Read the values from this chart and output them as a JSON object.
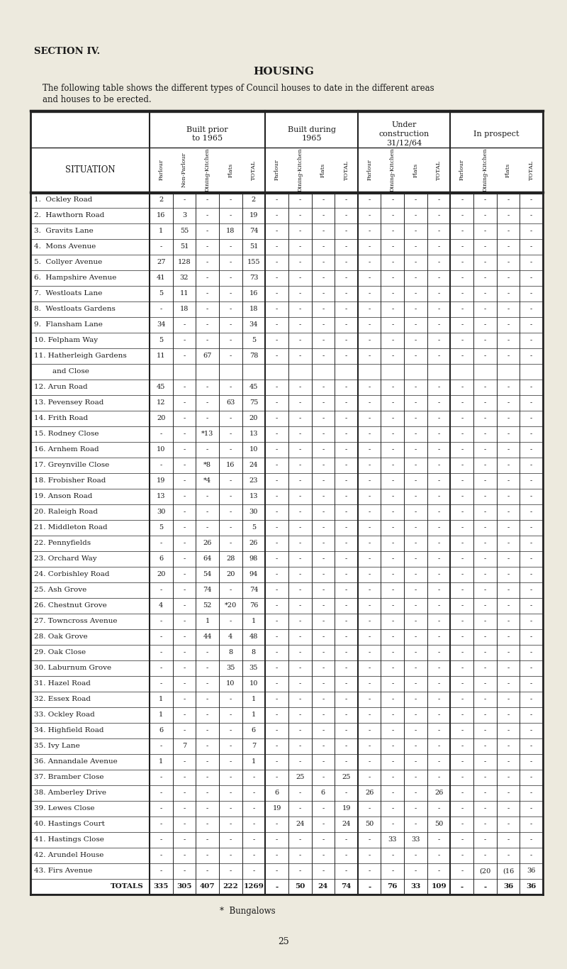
{
  "section_title": "SECTION IV.",
  "main_title": "HOUSING",
  "subtitle_line1": "The following table shows the different types of Council houses to date in the different areas",
  "subtitle_line2": "and houses to be erected.",
  "footer_note": "*  Bungalows",
  "page_num": "25",
  "bg_color": "#edeade",
  "text_color": "#1a1a1a",
  "line_color": "#222222",
  "group_labels": [
    "Built prior\nto 1965",
    "Built during\n1965",
    "Under\nconstruction\n31/12/64",
    "In prospect"
  ],
  "sub_headers_g0": [
    "Parlour",
    "Non-Parlour",
    "Dining-Kitchen",
    "Flats",
    "TOTAL"
  ],
  "sub_headers_g1": [
    "Parlour",
    "Dining-Kitchen",
    "Flats",
    "TOTAL"
  ],
  "sub_headers_g2": [
    "Parlour",
    "Dining-Kitchen",
    "Flats",
    "TOTAL"
  ],
  "sub_headers_g3": [
    "Parlour",
    "Dining-Kitchen",
    "Flats",
    "TOTAL"
  ],
  "situations": [
    "1.  Ockley Road",
    "2.  Hawthorn Road",
    "3.  Gravits Lane",
    "4.  Mons Avenue",
    "5.  Collyer Avenue",
    "6.  Hampshire Avenue",
    "7.  Westloats Lane",
    "8.  Westloats Gardens",
    "9.  Flansham Lane",
    "10. Felpham Way",
    "11. Hatherleigh Gardens",
    "        and Close",
    "12. Arun Road",
    "13. Pevensey Road",
    "14. Frith Road",
    "15. Rodney Close",
    "16. Arnhem Road",
    "17. Greynville Close",
    "18. Frobisher Road",
    "19. Anson Road",
    "20. Raleigh Road",
    "21. Middleton Road",
    "22. Pennyfields",
    "23. Orchard Way",
    "24. Corbishley Road",
    "25. Ash Grove",
    "26. Chestnut Grove",
    "27. Towncross Avenue",
    "28. Oak Grove",
    "29. Oak Close",
    "30. Laburnum Grove",
    "31. Hazel Road",
    "32. Essex Road",
    "33. Ockley Road",
    "34. Highfield Road",
    "35. Ivy Lane",
    "36. Annandale Avenue",
    "37. Bramber Close",
    "38. Amberley Drive",
    "39. Lewes Close",
    "40. Hastings Court",
    "41. Hastings Close",
    "42. Arundel House",
    "43. Firs Avenue",
    "TOTALS"
  ],
  "sit_is_continuation": [
    false,
    false,
    false,
    false,
    false,
    false,
    false,
    false,
    false,
    false,
    false,
    true,
    false,
    false,
    false,
    false,
    false,
    false,
    false,
    false,
    false,
    false,
    false,
    false,
    false,
    false,
    false,
    false,
    false,
    false,
    false,
    false,
    false,
    false,
    false,
    false,
    false,
    false,
    false,
    false,
    false,
    false,
    false,
    false,
    false
  ],
  "rows": [
    [
      "2",
      "-",
      "-",
      "-",
      "2",
      "-",
      "-",
      "-",
      "-",
      "-",
      "-",
      "-",
      "-",
      "-",
      "-",
      "-",
      "-"
    ],
    [
      "16",
      "3",
      "-",
      "-",
      "19",
      "-",
      "-",
      "-",
      "-",
      "-",
      "-",
      "-",
      "-",
      "-",
      "-",
      "-",
      "-"
    ],
    [
      "1",
      "55",
      "-",
      "18",
      "74",
      "-",
      "-",
      "-",
      "-",
      "-",
      "-",
      "-",
      "-",
      "-",
      "-",
      "-",
      "-"
    ],
    [
      "-",
      "51",
      "-",
      "-",
      "51",
      "-",
      "-",
      "-",
      "-",
      "-",
      "-",
      "-",
      "-",
      "-",
      "-",
      "-",
      "-"
    ],
    [
      "27",
      "128",
      "-",
      "-",
      "155",
      "-",
      "-",
      "-",
      "-",
      "-",
      "-",
      "-",
      "-",
      "-",
      "-",
      "-",
      "-"
    ],
    [
      "41",
      "32",
      "-",
      "-",
      "73",
      "-",
      "-",
      "-",
      "-",
      "-",
      "-",
      "-",
      "-",
      "-",
      "-",
      "-",
      "-"
    ],
    [
      "5",
      "11",
      "-",
      "-",
      "16",
      "-",
      "-",
      "-",
      "-",
      "-",
      "-",
      "-",
      "-",
      "-",
      "-",
      "-",
      "-"
    ],
    [
      "-",
      "18",
      "-",
      "-",
      "18",
      "-",
      "-",
      "-",
      "-",
      "-",
      "-",
      "-",
      "-",
      "-",
      "-",
      "-",
      "-"
    ],
    [
      "34",
      "-",
      "-",
      "-",
      "34",
      "-",
      "-",
      "-",
      "-",
      "-",
      "-",
      "-",
      "-",
      "-",
      "-",
      "-",
      "-"
    ],
    [
      "5",
      "-",
      "-",
      "-",
      "5",
      "-",
      "-",
      "-",
      "-",
      "-",
      "-",
      "-",
      "-",
      "-",
      "-",
      "-",
      "-"
    ],
    [
      "11",
      "-",
      "67",
      "-",
      "78",
      "-",
      "-",
      "-",
      "-",
      "-",
      "-",
      "-",
      "-",
      "-",
      "-",
      "-",
      "-"
    ],
    [
      "",
      "",
      "",
      "",
      "",
      "",
      "",
      "",
      "",
      "",
      "",
      "",
      "",
      "",
      "",
      "",
      ""
    ],
    [
      "45",
      "-",
      "-",
      "-",
      "45",
      "-",
      "-",
      "-",
      "-",
      "-",
      "-",
      "-",
      "-",
      "-",
      "-",
      "-",
      "-"
    ],
    [
      "12",
      "-",
      "-",
      "63",
      "75",
      "-",
      "-",
      "-",
      "-",
      "-",
      "-",
      "-",
      "-",
      "-",
      "-",
      "-",
      "-"
    ],
    [
      "20",
      "-",
      "-",
      "-",
      "20",
      "-",
      "-",
      "-",
      "-",
      "-",
      "-",
      "-",
      "-",
      "-",
      "-",
      "-",
      "-"
    ],
    [
      "-",
      "-",
      "*13",
      "-",
      "13",
      "-",
      "-",
      "-",
      "-",
      "-",
      "-",
      "-",
      "-",
      "-",
      "-",
      "-",
      "-"
    ],
    [
      "10",
      "-",
      "-",
      "-",
      "10",
      "-",
      "-",
      "-",
      "-",
      "-",
      "-",
      "-",
      "-",
      "-",
      "-",
      "-",
      "-"
    ],
    [
      "-",
      "-",
      "*8",
      "16",
      "24",
      "-",
      "-",
      "-",
      "-",
      "-",
      "-",
      "-",
      "-",
      "-",
      "-",
      "-",
      "-"
    ],
    [
      "19",
      "-",
      "*4",
      "-",
      "23",
      "-",
      "-",
      "-",
      "-",
      "-",
      "-",
      "-",
      "-",
      "-",
      "-",
      "-",
      "-"
    ],
    [
      "13",
      "-",
      "-",
      "-",
      "13",
      "-",
      "-",
      "-",
      "-",
      "-",
      "-",
      "-",
      "-",
      "-",
      "-",
      "-",
      "-"
    ],
    [
      "30",
      "-",
      "-",
      "-",
      "30",
      "-",
      "-",
      "-",
      "-",
      "-",
      "-",
      "-",
      "-",
      "-",
      "-",
      "-",
      "-"
    ],
    [
      "5",
      "-",
      "-",
      "-",
      "5",
      "-",
      "-",
      "-",
      "-",
      "-",
      "-",
      "-",
      "-",
      "-",
      "-",
      "-",
      "-"
    ],
    [
      "-",
      "-",
      "26",
      "-",
      "26",
      "-",
      "-",
      "-",
      "-",
      "-",
      "-",
      "-",
      "-",
      "-",
      "-",
      "-",
      "-"
    ],
    [
      "6",
      "-",
      "64",
      "28",
      "98",
      "-",
      "-",
      "-",
      "-",
      "-",
      "-",
      "-",
      "-",
      "-",
      "-",
      "-",
      "-"
    ],
    [
      "20",
      "-",
      "54",
      "20",
      "94",
      "-",
      "-",
      "-",
      "-",
      "-",
      "-",
      "-",
      "-",
      "-",
      "-",
      "-",
      "-"
    ],
    [
      "-",
      "-",
      "74",
      "-",
      "74",
      "-",
      "-",
      "-",
      "-",
      "-",
      "-",
      "-",
      "-",
      "-",
      "-",
      "-",
      "-"
    ],
    [
      "4",
      "-",
      "52",
      "*20",
      "76",
      "-",
      "-",
      "-",
      "-",
      "-",
      "-",
      "-",
      "-",
      "-",
      "-",
      "-",
      "-"
    ],
    [
      "-",
      "-",
      "1",
      "-",
      "1",
      "-",
      "-",
      "-",
      "-",
      "-",
      "-",
      "-",
      "-",
      "-",
      "-",
      "-",
      "-"
    ],
    [
      "-",
      "-",
      "44",
      "4",
      "48",
      "-",
      "-",
      "-",
      "-",
      "-",
      "-",
      "-",
      "-",
      "-",
      "-",
      "-",
      "-"
    ],
    [
      "-",
      "-",
      "-",
      "8",
      "8",
      "-",
      "-",
      "-",
      "-",
      "-",
      "-",
      "-",
      "-",
      "-",
      "-",
      "-",
      "-"
    ],
    [
      "-",
      "-",
      "-",
      "35",
      "35",
      "-",
      "-",
      "-",
      "-",
      "-",
      "-",
      "-",
      "-",
      "-",
      "-",
      "-",
      "-"
    ],
    [
      "-",
      "-",
      "-",
      "10",
      "10",
      "-",
      "-",
      "-",
      "-",
      "-",
      "-",
      "-",
      "-",
      "-",
      "-",
      "-",
      "-"
    ],
    [
      "1",
      "-",
      "-",
      "-",
      "1",
      "-",
      "-",
      "-",
      "-",
      "-",
      "-",
      "-",
      "-",
      "-",
      "-",
      "-",
      "-"
    ],
    [
      "1",
      "-",
      "-",
      "-",
      "1",
      "-",
      "-",
      "-",
      "-",
      "-",
      "-",
      "-",
      "-",
      "-",
      "-",
      "-",
      "-"
    ],
    [
      "6",
      "-",
      "-",
      "-",
      "6",
      "-",
      "-",
      "-",
      "-",
      "-",
      "-",
      "-",
      "-",
      "-",
      "-",
      "-",
      "-"
    ],
    [
      "-",
      "7",
      "-",
      "-",
      "7",
      "-",
      "-",
      "-",
      "-",
      "-",
      "-",
      "-",
      "-",
      "-",
      "-",
      "-",
      "-"
    ],
    [
      "1",
      "-",
      "-",
      "-",
      "1",
      "-",
      "-",
      "-",
      "-",
      "-",
      "-",
      "-",
      "-",
      "-",
      "-",
      "-",
      "-"
    ],
    [
      "-",
      "-",
      "-",
      "-",
      "-",
      "-",
      "25",
      "-",
      "25",
      "-",
      "-",
      "-",
      "-",
      "-",
      "-",
      "-",
      "-"
    ],
    [
      "-",
      "-",
      "-",
      "-",
      "-",
      "6",
      "-",
      "6",
      "-",
      "26",
      "-",
      "-",
      "26",
      "-",
      "-",
      "-",
      "-"
    ],
    [
      "-",
      "-",
      "-",
      "-",
      "-",
      "19",
      "-",
      "-",
      "19",
      "-",
      "-",
      "-",
      "-",
      "-",
      "-",
      "-",
      "-"
    ],
    [
      "-",
      "-",
      "-",
      "-",
      "-",
      "-",
      "24",
      "-",
      "24",
      "50",
      "-",
      "-",
      "50",
      "-",
      "-",
      "-",
      "-"
    ],
    [
      "-",
      "-",
      "-",
      "-",
      "-",
      "-",
      "-",
      "-",
      "-",
      "-",
      "33",
      "33",
      "-",
      "-",
      "-",
      "-",
      "-"
    ],
    [
      "-",
      "-",
      "-",
      "-",
      "-",
      "-",
      "-",
      "-",
      "-",
      "-",
      "-",
      "-",
      "-",
      "-",
      "-",
      "-",
      "-"
    ],
    [
      "-",
      "-",
      "-",
      "-",
      "-",
      "-",
      "-",
      "-",
      "-",
      "-",
      "-",
      "-",
      "-",
      "-",
      "(20",
      "(16",
      "36"
    ],
    [
      "335",
      "305",
      "407",
      "222",
      "1269",
      "-",
      "50",
      "24",
      "74",
      "-",
      "76",
      "33",
      "109",
      "-",
      "-",
      "36",
      "36"
    ]
  ]
}
